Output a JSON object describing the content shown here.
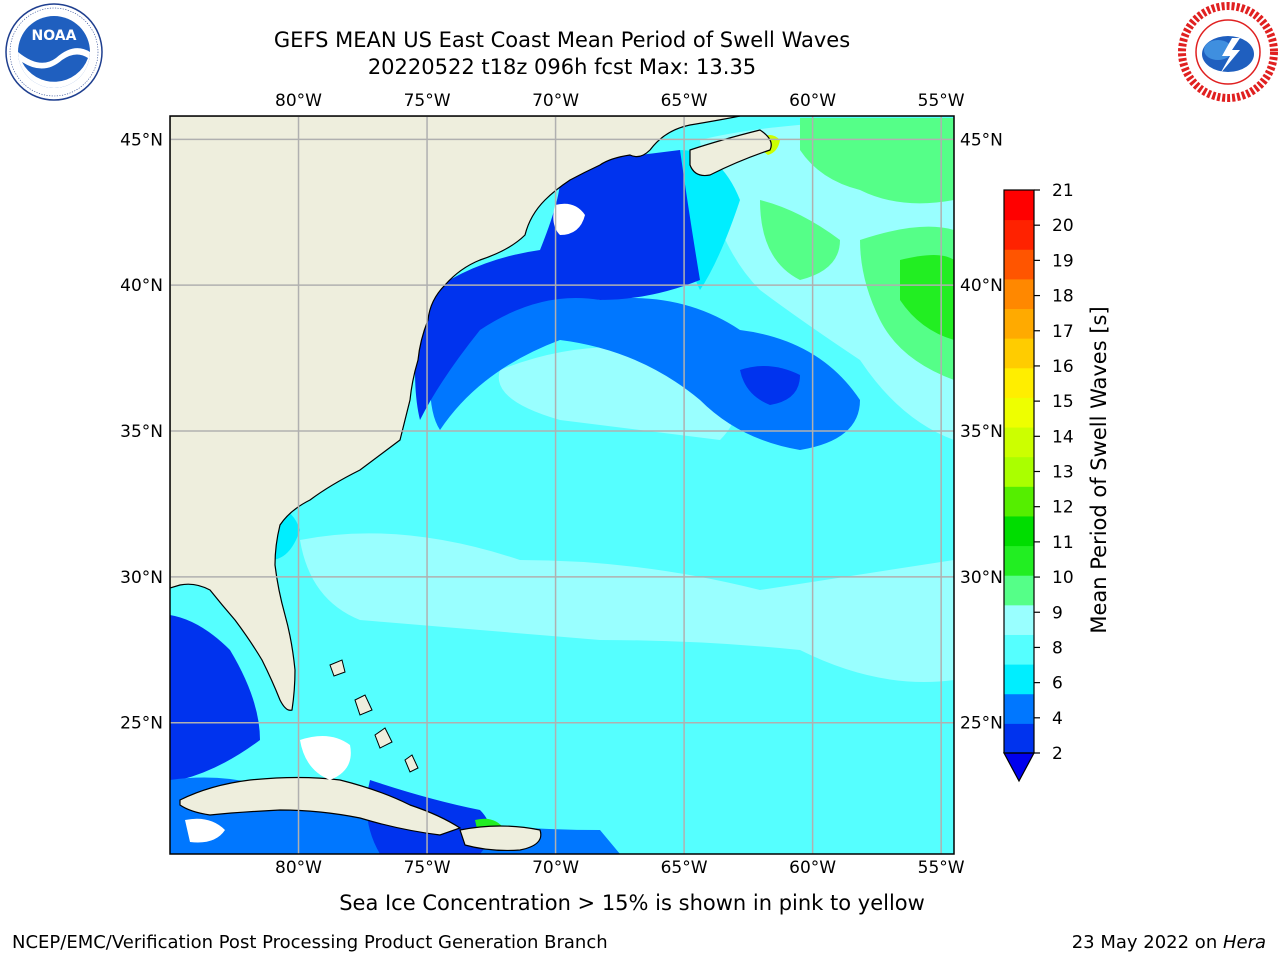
{
  "title_line1": "GEFS MEAN US East Coast Mean Period of Swell Waves",
  "title_line2": "20220522 t18z 096h fcst   Max: 13.35",
  "map": {
    "lon_labels": [
      "80°W",
      "75°W",
      "70°W",
      "65°W",
      "60°W",
      "55°W"
    ],
    "lat_labels": [
      "45°N",
      "40°N",
      "35°N",
      "30°N",
      "25°N"
    ],
    "lon_values": [
      -80,
      -75,
      -70,
      -65,
      -60,
      -55
    ],
    "lat_values": [
      45,
      40,
      35,
      30,
      25
    ],
    "extent": {
      "lon_min": -85,
      "lon_max": -54.5,
      "lat_min": 20.5,
      "lat_max": 45.8
    },
    "colors": {
      "land": "#eeeedd",
      "coast": "#000000",
      "grid": "#b0b0b0",
      "ocean_main": "#55ffff"
    }
  },
  "colorbar": {
    "title": "Mean Period of Swell Waves [s]",
    "ticks": [
      "2",
      "4",
      "6",
      "8",
      "9",
      "10",
      "11",
      "12",
      "13",
      "14",
      "15",
      "16",
      "17",
      "18",
      "19",
      "20",
      "21"
    ],
    "colors": [
      "#0033ee",
      "#0077ff",
      "#00eeff",
      "#55ffff",
      "#99ffff",
      "#55ff88",
      "#22ee22",
      "#00dd00",
      "#55ee00",
      "#aaff00",
      "#ccff00",
      "#eeff00",
      "#ffee00",
      "#ffcc00",
      "#ffaa00",
      "#ff8800",
      "#ff5500",
      "#ff2200",
      "#ff0000"
    ],
    "extend_min_color": "#0000ee"
  },
  "note": "Sea Ice Concentration > 15% is shown in pink to yellow",
  "footer": {
    "left": "NCEP/EMC/Verification Post Processing Product Generation Branch",
    "right_prefix": "23 May 2022 on ",
    "right_host": "Hera"
  },
  "logos": {
    "noaa": {
      "text": "NOAA"
    },
    "nws": {}
  }
}
